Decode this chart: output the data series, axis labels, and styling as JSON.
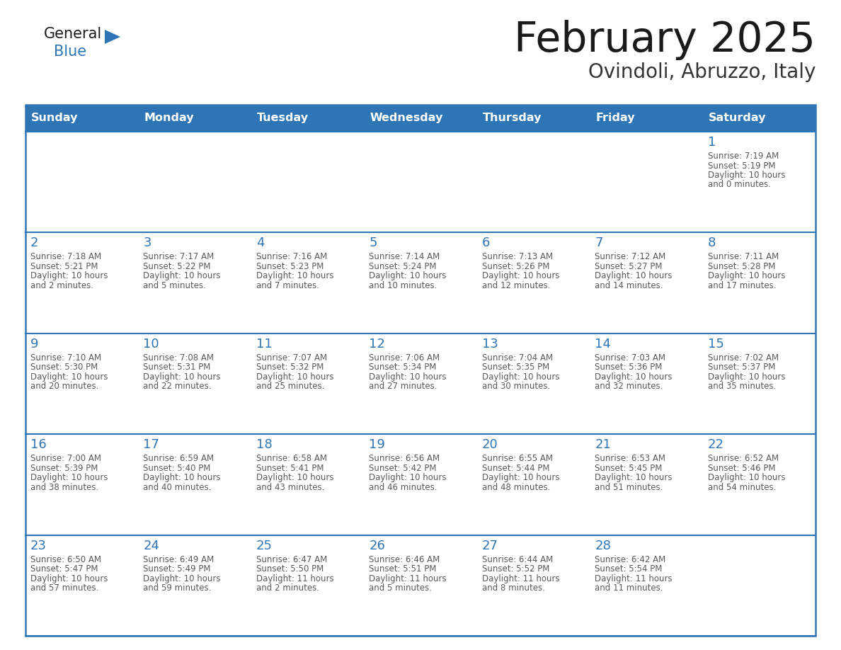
{
  "title": "February 2025",
  "subtitle": "Ovindoli, Abruzzo, Italy",
  "header_bg": "#2E75B6",
  "header_text_color": "#FFFFFF",
  "cell_bg": "#FFFFFF",
  "cell_border_color": "#2E75B6",
  "day_number_color": "#2E75B6",
  "detail_text_color": "#595959",
  "days_of_week": [
    "Sunday",
    "Monday",
    "Tuesday",
    "Wednesday",
    "Thursday",
    "Friday",
    "Saturday"
  ],
  "logo_general_color": "#1a1a1a",
  "logo_blue_color": "#2E75B6",
  "calendar_data": [
    [
      null,
      null,
      null,
      null,
      null,
      null,
      {
        "day": 1,
        "sunrise": "7:19 AM",
        "sunset": "5:19 PM",
        "daylight": "10 hours and 0 minutes."
      }
    ],
    [
      {
        "day": 2,
        "sunrise": "7:18 AM",
        "sunset": "5:21 PM",
        "daylight": "10 hours and 2 minutes."
      },
      {
        "day": 3,
        "sunrise": "7:17 AM",
        "sunset": "5:22 PM",
        "daylight": "10 hours and 5 minutes."
      },
      {
        "day": 4,
        "sunrise": "7:16 AM",
        "sunset": "5:23 PM",
        "daylight": "10 hours and 7 minutes."
      },
      {
        "day": 5,
        "sunrise": "7:14 AM",
        "sunset": "5:24 PM",
        "daylight": "10 hours and 10 minutes."
      },
      {
        "day": 6,
        "sunrise": "7:13 AM",
        "sunset": "5:26 PM",
        "daylight": "10 hours and 12 minutes."
      },
      {
        "day": 7,
        "sunrise": "7:12 AM",
        "sunset": "5:27 PM",
        "daylight": "10 hours and 14 minutes."
      },
      {
        "day": 8,
        "sunrise": "7:11 AM",
        "sunset": "5:28 PM",
        "daylight": "10 hours and 17 minutes."
      }
    ],
    [
      {
        "day": 9,
        "sunrise": "7:10 AM",
        "sunset": "5:30 PM",
        "daylight": "10 hours and 20 minutes."
      },
      {
        "day": 10,
        "sunrise": "7:08 AM",
        "sunset": "5:31 PM",
        "daylight": "10 hours and 22 minutes."
      },
      {
        "day": 11,
        "sunrise": "7:07 AM",
        "sunset": "5:32 PM",
        "daylight": "10 hours and 25 minutes."
      },
      {
        "day": 12,
        "sunrise": "7:06 AM",
        "sunset": "5:34 PM",
        "daylight": "10 hours and 27 minutes."
      },
      {
        "day": 13,
        "sunrise": "7:04 AM",
        "sunset": "5:35 PM",
        "daylight": "10 hours and 30 minutes."
      },
      {
        "day": 14,
        "sunrise": "7:03 AM",
        "sunset": "5:36 PM",
        "daylight": "10 hours and 32 minutes."
      },
      {
        "day": 15,
        "sunrise": "7:02 AM",
        "sunset": "5:37 PM",
        "daylight": "10 hours and 35 minutes."
      }
    ],
    [
      {
        "day": 16,
        "sunrise": "7:00 AM",
        "sunset": "5:39 PM",
        "daylight": "10 hours and 38 minutes."
      },
      {
        "day": 17,
        "sunrise": "6:59 AM",
        "sunset": "5:40 PM",
        "daylight": "10 hours and 40 minutes."
      },
      {
        "day": 18,
        "sunrise": "6:58 AM",
        "sunset": "5:41 PM",
        "daylight": "10 hours and 43 minutes."
      },
      {
        "day": 19,
        "sunrise": "6:56 AM",
        "sunset": "5:42 PM",
        "daylight": "10 hours and 46 minutes."
      },
      {
        "day": 20,
        "sunrise": "6:55 AM",
        "sunset": "5:44 PM",
        "daylight": "10 hours and 48 minutes."
      },
      {
        "day": 21,
        "sunrise": "6:53 AM",
        "sunset": "5:45 PM",
        "daylight": "10 hours and 51 minutes."
      },
      {
        "day": 22,
        "sunrise": "6:52 AM",
        "sunset": "5:46 PM",
        "daylight": "10 hours and 54 minutes."
      }
    ],
    [
      {
        "day": 23,
        "sunrise": "6:50 AM",
        "sunset": "5:47 PM",
        "daylight": "10 hours and 57 minutes."
      },
      {
        "day": 24,
        "sunrise": "6:49 AM",
        "sunset": "5:49 PM",
        "daylight": "10 hours and 59 minutes."
      },
      {
        "day": 25,
        "sunrise": "6:47 AM",
        "sunset": "5:50 PM",
        "daylight": "11 hours and 2 minutes."
      },
      {
        "day": 26,
        "sunrise": "6:46 AM",
        "sunset": "5:51 PM",
        "daylight": "11 hours and 5 minutes."
      },
      {
        "day": 27,
        "sunrise": "6:44 AM",
        "sunset": "5:52 PM",
        "daylight": "11 hours and 8 minutes."
      },
      {
        "day": 28,
        "sunrise": "6:42 AM",
        "sunset": "5:54 PM",
        "daylight": "11 hours and 11 minutes."
      },
      null
    ]
  ]
}
